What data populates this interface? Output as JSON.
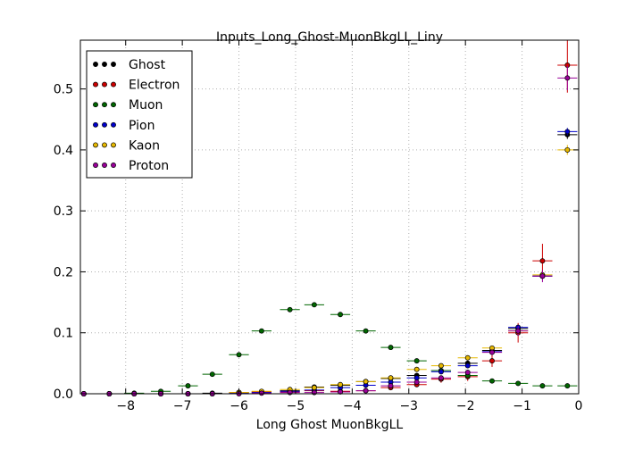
{
  "chart_data": {
    "type": "scatter",
    "title": "Inputs_Long_Ghost-MuonBkgLL_Liny",
    "xlabel": "Long Ghost MuonBkgLL",
    "ylabel": "",
    "xlim": [
      -8.8,
      0.0
    ],
    "ylim": [
      0.0,
      0.58
    ],
    "xticks": [
      -8,
      -7,
      -6,
      -5,
      -4,
      -3,
      -2,
      -1,
      0
    ],
    "xtick_labels": [
      "−8",
      "−7",
      "−6",
      "−5",
      "−4",
      "−3",
      "−2",
      "−1",
      "0"
    ],
    "yticks": [
      0.0,
      0.1,
      0.2,
      0.3,
      0.4,
      0.5
    ],
    "ytick_labels": [
      "0.0",
      "0.1",
      "0.2",
      "0.3",
      "0.4",
      "0.5"
    ],
    "grid": true,
    "legend_position": "top-left",
    "bin_half_width": 0.175,
    "x": [
      -8.74,
      -8.29,
      -7.85,
      -7.38,
      -6.9,
      -6.47,
      -6.0,
      -5.6,
      -5.1,
      -4.67,
      -4.21,
      -3.76,
      -3.32,
      -2.86,
      -2.43,
      -1.96,
      -1.53,
      -1.07,
      -0.64,
      -0.2
    ],
    "series": [
      {
        "name": "Ghost",
        "color": "#000000",
        "values": [
          0.0,
          0.0,
          0.0,
          0.0,
          0.0,
          0.001,
          0.002,
          0.003,
          0.005,
          0.011,
          0.014,
          0.02,
          0.025,
          0.03,
          0.038,
          0.05,
          0.071,
          0.107,
          0.193,
          0.425
        ],
        "errors": [
          0.0,
          0.0,
          0.0,
          0.0,
          0.0,
          0.0,
          0.0,
          0.001,
          0.001,
          0.001,
          0.001,
          0.002,
          0.002,
          0.003,
          0.003,
          0.003,
          0.004,
          0.005,
          0.006,
          0.007
        ]
      },
      {
        "name": "Electron",
        "color": "#cc0000",
        "values": [
          0.0,
          0.0,
          0.0,
          0.0,
          0.0,
          0.0,
          0.002,
          0.003,
          0.003,
          0.005,
          0.004,
          0.005,
          0.01,
          0.015,
          0.024,
          0.028,
          0.054,
          0.1,
          0.218,
          0.539
        ],
        "errors": [
          0.0,
          0.0,
          0.0,
          0.0,
          0.0,
          0.0,
          0.001,
          0.001,
          0.001,
          0.002,
          0.002,
          0.002,
          0.003,
          0.004,
          0.006,
          0.007,
          0.01,
          0.016,
          0.028,
          0.045
        ]
      },
      {
        "name": "Muon",
        "color": "#006600",
        "values": [
          0.0,
          0.0,
          0.001,
          0.004,
          0.013,
          0.032,
          0.064,
          0.103,
          0.138,
          0.146,
          0.13,
          0.103,
          0.076,
          0.054,
          0.038,
          0.03,
          0.021,
          0.017,
          0.013,
          0.013
        ],
        "errors": [
          0.0,
          0.0,
          0.0,
          0.001,
          0.001,
          0.002,
          0.002,
          0.003,
          0.003,
          0.003,
          0.003,
          0.003,
          0.003,
          0.002,
          0.002,
          0.002,
          0.002,
          0.002,
          0.001,
          0.001
        ]
      },
      {
        "name": "Pion",
        "color": "#0000cc",
        "values": [
          0.0,
          0.0,
          0.0,
          0.0,
          0.0,
          0.0,
          0.001,
          0.002,
          0.004,
          0.006,
          0.01,
          0.014,
          0.019,
          0.026,
          0.036,
          0.046,
          0.069,
          0.109,
          0.193,
          0.43
        ],
        "errors": [
          0.0,
          0.0,
          0.0,
          0.0,
          0.0,
          0.0,
          0.0,
          0.0,
          0.001,
          0.001,
          0.001,
          0.001,
          0.001,
          0.002,
          0.002,
          0.002,
          0.003,
          0.004,
          0.005,
          0.006
        ]
      },
      {
        "name": "Kaon",
        "color": "#e6b800",
        "values": [
          0.0,
          0.0,
          0.0,
          0.0,
          0.0,
          0.0,
          0.002,
          0.004,
          0.007,
          0.01,
          0.015,
          0.02,
          0.026,
          0.04,
          0.046,
          0.059,
          0.075,
          0.103,
          0.195,
          0.4
        ],
        "errors": [
          0.0,
          0.0,
          0.0,
          0.0,
          0.0,
          0.0,
          0.001,
          0.001,
          0.001,
          0.001,
          0.001,
          0.002,
          0.002,
          0.002,
          0.003,
          0.003,
          0.004,
          0.005,
          0.006,
          0.008
        ]
      },
      {
        "name": "Proton",
        "color": "#990099",
        "values": [
          0.0,
          0.0,
          0.0,
          0.0,
          0.0,
          0.0,
          0.0,
          0.001,
          0.002,
          0.002,
          0.003,
          0.005,
          0.013,
          0.019,
          0.026,
          0.035,
          0.068,
          0.103,
          0.193,
          0.518
        ],
        "errors": [
          0.0,
          0.0,
          0.0,
          0.0,
          0.0,
          0.0,
          0.0,
          0.001,
          0.001,
          0.001,
          0.001,
          0.001,
          0.002,
          0.003,
          0.003,
          0.004,
          0.005,
          0.008,
          0.01,
          0.02
        ]
      }
    ]
  }
}
